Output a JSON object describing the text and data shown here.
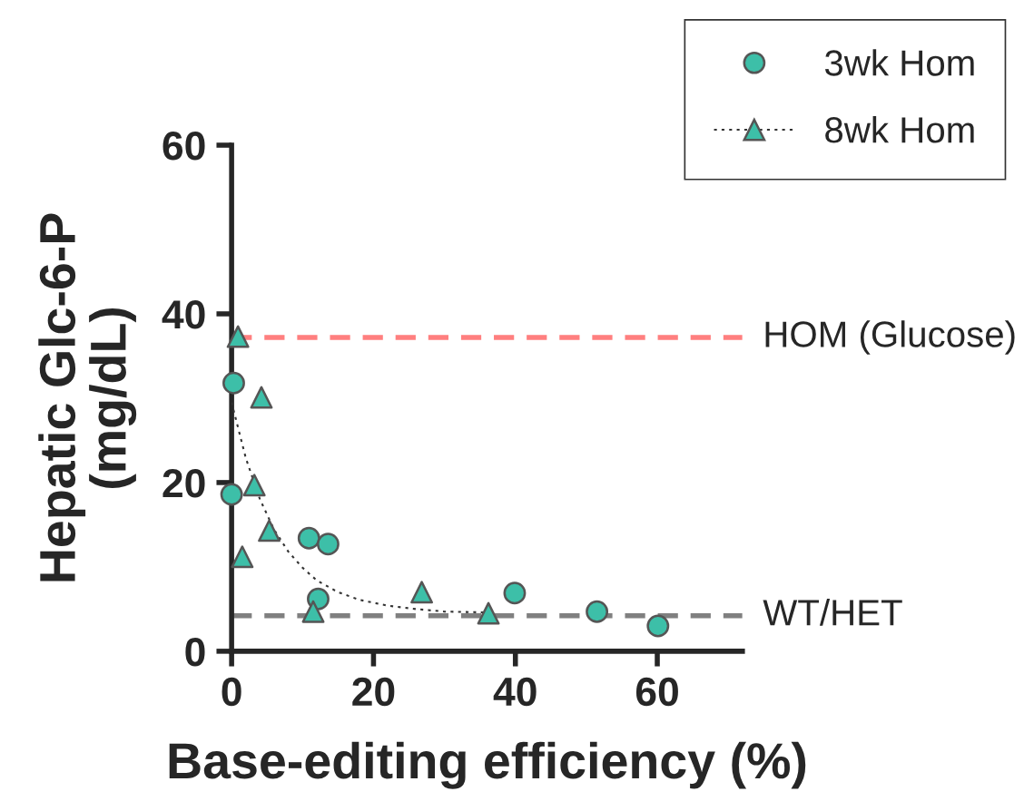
{
  "chart_data": {
    "type": "scatter",
    "xlabel": "Base-editing efficiency (%)",
    "ylabel": "Hepatic Glc-6-P\n(mg/dL)",
    "xlim": [
      0,
      72
    ],
    "xticks": [
      0,
      20,
      40,
      60
    ],
    "ylim": [
      0,
      60
    ],
    "yticks": [
      0,
      20,
      40,
      60
    ],
    "grid": false,
    "legend": "top right",
    "series": [
      {
        "name": "3wk Hom",
        "marker": "circle",
        "color": "#3dbfa8",
        "x": [
          0.3,
          0,
          10.9,
          13.6,
          12.2,
          39.9,
          51.5,
          60.1
        ],
        "values": [
          31.8,
          18.6,
          13.4,
          12.7,
          6.2,
          6.9,
          4.7,
          3.0
        ]
      },
      {
        "name": "8wk Hom",
        "marker": "triangle",
        "line_style": "dotted",
        "color": "#3dbfa8",
        "x": [
          0.9,
          4.2,
          3.2,
          5.3,
          1.5,
          11.5,
          26.8,
          36.2
        ],
        "values": [
          37.3,
          30.1,
          19.7,
          14.3,
          11.2,
          4.7,
          7.0,
          4.5
        ]
      },
      {
        "type": "line",
        "line_style": "dotted",
        "marker": "none",
        "color": "#333333",
        "x": [
          0,
          2,
          4,
          6,
          8,
          10,
          12,
          15,
          18,
          22,
          26,
          30,
          36
        ],
        "values": [
          29.5,
          22.9,
          18.0,
          14.4,
          11.8,
          9.9,
          8.4,
          7.0,
          6.1,
          5.4,
          5.0,
          4.7,
          4.6
        ]
      }
    ],
    "ref_lines": [
      {
        "axis": "y",
        "value": 37.2,
        "label": "HOM (Glucose)",
        "color": "#ff7f7f",
        "line_style": "dashed"
      },
      {
        "axis": "y",
        "value": 4.2,
        "label": "WT/HET",
        "color": "#808080",
        "line_style": "dashed"
      }
    ]
  }
}
